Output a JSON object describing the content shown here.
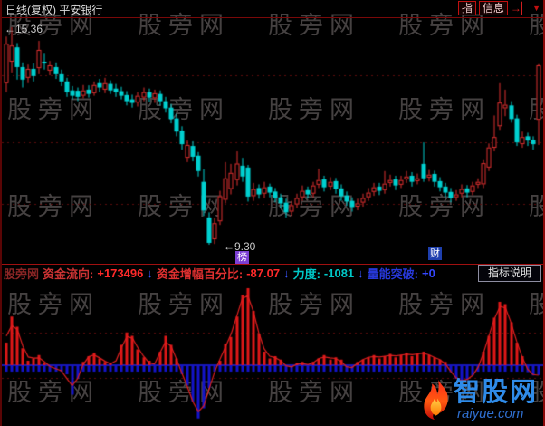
{
  "header": {
    "title": "日线(复权) 平安银行",
    "tools": [
      {
        "label": "指"
      },
      {
        "label": "信息"
      }
    ],
    "icons": {
      "next": "→▏",
      "dropdown": "▼"
    }
  },
  "watermark": {
    "text": "股旁网"
  },
  "annotations": {
    "high": "←15.36",
    "low": "←9.30"
  },
  "tags": {
    "rank": "榜",
    "wealth": "财"
  },
  "indicator_header": {
    "site_prefix": "股旁网",
    "fields": [
      {
        "label": "资金流向:",
        "value": "+173496",
        "arrow": "↓"
      },
      {
        "label": "资金增幅百分比:",
        "value": "-87.07",
        "arrow": "↓"
      },
      {
        "label": "力度:",
        "value": "-1081",
        "arrow": "↓"
      },
      {
        "label": "量能突破:",
        "value": "+0",
        "arrow": ""
      }
    ],
    "help_button": "指标说明"
  },
  "logo": {
    "brand": "智股网",
    "domain": "raiyue.com"
  },
  "colors": {
    "background": "#000000",
    "candle_up": "#e03030",
    "candle_down": "#00d0d0",
    "grid_dotted": "#5c0c0c",
    "separator_red": "#a01010",
    "histogram_up": "#e01818",
    "histogram_down": "#1414cc",
    "envelope_line": "#e02020",
    "strength_cyan": "#00c8c8",
    "volume_blue": "#2738d8",
    "logo_blue": "#2f8be8"
  },
  "chart_data": [
    {
      "type": "candlestick",
      "symbol": "平安银行",
      "period": "日线(复权)",
      "high_annotation": 15.36,
      "low_annotation": 9.3,
      "ylim": [
        9.0,
        15.6
      ],
      "grid": "dotted-horizontal",
      "up_color": "#e03030",
      "down_color": "#00d0d0",
      "ohlc": [
        [
          13.8,
          15.1,
          13.55,
          14.9
        ],
        [
          14.4,
          15.36,
          14.1,
          14.85
        ],
        [
          14.8,
          14.92,
          13.9,
          14.25
        ],
        [
          14.25,
          14.38,
          13.68,
          13.9
        ],
        [
          13.95,
          14.32,
          13.8,
          14.2
        ],
        [
          14.2,
          14.35,
          13.85,
          14.0
        ],
        [
          14.22,
          14.98,
          14.05,
          14.73
        ],
        [
          14.4,
          14.62,
          14.18,
          14.35
        ],
        [
          14.15,
          14.42,
          14.02,
          14.3
        ],
        [
          14.25,
          14.38,
          13.92,
          14.05
        ],
        [
          14.05,
          14.18,
          13.72,
          13.85
        ],
        [
          13.85,
          13.95,
          13.42,
          13.55
        ],
        [
          13.6,
          13.72,
          13.35,
          13.45
        ],
        [
          13.59,
          13.68,
          13.3,
          13.42
        ],
        [
          13.45,
          13.75,
          13.38,
          13.6
        ],
        [
          13.62,
          13.74,
          13.4,
          13.5
        ],
        [
          13.52,
          13.85,
          13.45,
          13.75
        ],
        [
          13.8,
          13.92,
          13.55,
          13.68
        ],
        [
          13.62,
          13.95,
          13.52,
          13.8
        ],
        [
          13.78,
          13.88,
          13.5,
          13.6
        ],
        [
          13.65,
          13.78,
          13.42,
          13.55
        ],
        [
          13.58,
          13.7,
          13.35,
          13.45
        ],
        [
          13.47,
          13.58,
          13.18,
          13.3
        ],
        [
          13.35,
          13.48,
          13.12,
          13.25
        ],
        [
          13.26,
          13.55,
          13.15,
          13.45
        ],
        [
          13.4,
          13.68,
          13.3,
          13.55
        ],
        [
          13.55,
          13.65,
          13.28,
          13.4
        ],
        [
          13.38,
          13.62,
          13.25,
          13.52
        ],
        [
          13.5,
          13.6,
          13.18,
          13.3
        ],
        [
          13.3,
          13.42,
          12.98,
          13.1
        ],
        [
          13.12,
          13.22,
          12.68,
          12.8
        ],
        [
          12.82,
          12.95,
          12.32,
          12.45
        ],
        [
          12.48,
          12.6,
          11.95,
          12.1
        ],
        [
          11.72,
          12.2,
          11.6,
          12.08
        ],
        [
          12.05,
          12.18,
          11.62,
          11.75
        ],
        [
          11.78,
          11.88,
          11.2,
          11.35
        ],
        [
          11.05,
          11.4,
          10.1,
          10.25
        ],
        [
          10.06,
          10.2,
          9.3,
          9.35
        ],
        [
          9.45,
          10.05,
          9.32,
          9.9
        ],
        [
          9.95,
          10.8,
          9.85,
          10.65
        ],
        [
          10.55,
          11.6,
          10.45,
          11.15
        ],
        [
          10.85,
          11.55,
          10.7,
          11.3
        ],
        [
          11.1,
          11.9,
          10.95,
          11.56
        ],
        [
          11.5,
          11.72,
          11.05,
          11.2
        ],
        [
          11.45,
          11.52,
          10.5,
          10.64
        ],
        [
          10.65,
          11.02,
          10.52,
          10.85
        ],
        [
          10.88,
          10.98,
          10.58,
          10.7
        ],
        [
          10.72,
          11.05,
          10.6,
          10.9
        ],
        [
          10.92,
          11.0,
          10.62,
          10.75
        ],
        [
          10.78,
          10.88,
          10.48,
          10.6
        ],
        [
          10.62,
          10.72,
          10.32,
          10.45
        ],
        [
          10.47,
          10.58,
          10.06,
          10.2
        ],
        [
          10.22,
          10.52,
          10.1,
          10.4
        ],
        [
          10.42,
          10.72,
          10.32,
          10.6
        ],
        [
          10.62,
          10.95,
          10.52,
          10.8
        ],
        [
          10.82,
          10.92,
          10.58,
          10.7
        ],
        [
          10.72,
          11.05,
          10.62,
          10.95
        ],
        [
          10.97,
          11.42,
          10.88,
          11.1
        ],
        [
          11.12,
          11.22,
          10.78,
          10.9
        ],
        [
          10.92,
          11.18,
          10.82,
          11.05
        ],
        [
          11.07,
          11.16,
          10.72,
          10.85
        ],
        [
          10.87,
          10.98,
          10.52,
          10.65
        ],
        [
          10.67,
          10.78,
          10.38,
          10.5
        ],
        [
          10.52,
          10.62,
          10.22,
          10.35
        ],
        [
          10.36,
          10.58,
          10.26,
          10.45
        ],
        [
          10.47,
          10.72,
          10.36,
          10.6
        ],
        [
          10.62,
          10.88,
          10.52,
          10.75
        ],
        [
          10.77,
          11.02,
          10.66,
          10.9
        ],
        [
          10.92,
          11.02,
          10.68,
          10.8
        ],
        [
          10.82,
          11.35,
          10.72,
          11.0
        ],
        [
          11.02,
          11.25,
          10.92,
          11.1
        ],
        [
          11.12,
          11.22,
          10.82,
          10.95
        ],
        [
          10.97,
          11.22,
          10.88,
          11.1
        ],
        [
          11.12,
          11.35,
          11.02,
          11.2
        ],
        [
          11.22,
          11.32,
          10.92,
          11.05
        ],
        [
          11.07,
          11.28,
          10.98,
          11.15
        ],
        [
          11.55,
          12.15,
          11.05,
          11.15
        ],
        [
          11.17,
          11.38,
          11.06,
          11.25
        ],
        [
          11.27,
          11.36,
          10.92,
          11.05
        ],
        [
          11.07,
          11.18,
          10.78,
          10.9
        ],
        [
          10.92,
          11.02,
          10.62,
          10.75
        ],
        [
          10.77,
          10.88,
          10.48,
          10.6
        ],
        [
          10.62,
          10.82,
          10.52,
          10.7
        ],
        [
          10.72,
          10.98,
          10.62,
          10.85
        ],
        [
          10.87,
          10.96,
          10.62,
          10.75
        ],
        [
          10.77,
          11.05,
          10.68,
          10.95
        ],
        [
          10.97,
          11.15,
          10.88,
          11.05
        ],
        [
          10.98,
          11.68,
          10.88,
          11.57
        ],
        [
          11.45,
          12.12,
          11.35,
          12.01
        ],
        [
          12.0,
          12.9,
          11.9,
          12.3
        ],
        [
          12.6,
          13.8,
          12.5,
          13.26
        ],
        [
          13.1,
          13.62,
          12.88,
          13.2
        ],
        [
          13.18,
          13.3,
          12.7,
          12.8
        ],
        [
          12.82,
          12.92,
          12.05,
          12.15
        ],
        [
          12.1,
          12.45,
          12.0,
          12.3
        ],
        [
          12.32,
          12.42,
          12.05,
          12.2
        ],
        [
          12.22,
          12.32,
          11.95,
          12.1
        ],
        [
          12.78,
          14.33,
          12.08,
          14.3
        ]
      ]
    },
    {
      "type": "bar",
      "name": "资金增幅百分比",
      "last_value": -87.07,
      "grid": "dotted-horizontal",
      "up_color": "#e01818",
      "down_color": "#1414cc",
      "line_color": "#e02020",
      "line": "3-bar weighted smoothing of values",
      "baseline_band_value": -56,
      "values": [
        200,
        430,
        340,
        150,
        40,
        60,
        90,
        20,
        -20,
        -30,
        -40,
        -80,
        -260,
        -120,
        30,
        80,
        110,
        60,
        30,
        20,
        -20,
        180,
        290,
        260,
        140,
        70,
        40,
        -60,
        120,
        260,
        180,
        60,
        -80,
        -180,
        -320,
        -470,
        -380,
        -200,
        -30,
        40,
        190,
        250,
        430,
        620,
        680,
        480,
        280,
        120,
        60,
        80,
        50,
        -20,
        -30,
        20,
        30,
        -20,
        30,
        60,
        90,
        50,
        70,
        50,
        -30,
        -40,
        30,
        50,
        70,
        90,
        60,
        80,
        100,
        70,
        90,
        110,
        80,
        100,
        120,
        90,
        70,
        50,
        30,
        -60,
        -120,
        -150,
        -130,
        -90,
        -50,
        120,
        260,
        420,
        560,
        540,
        380,
        200,
        80,
        -60,
        -90,
        -87.07
      ]
    }
  ]
}
